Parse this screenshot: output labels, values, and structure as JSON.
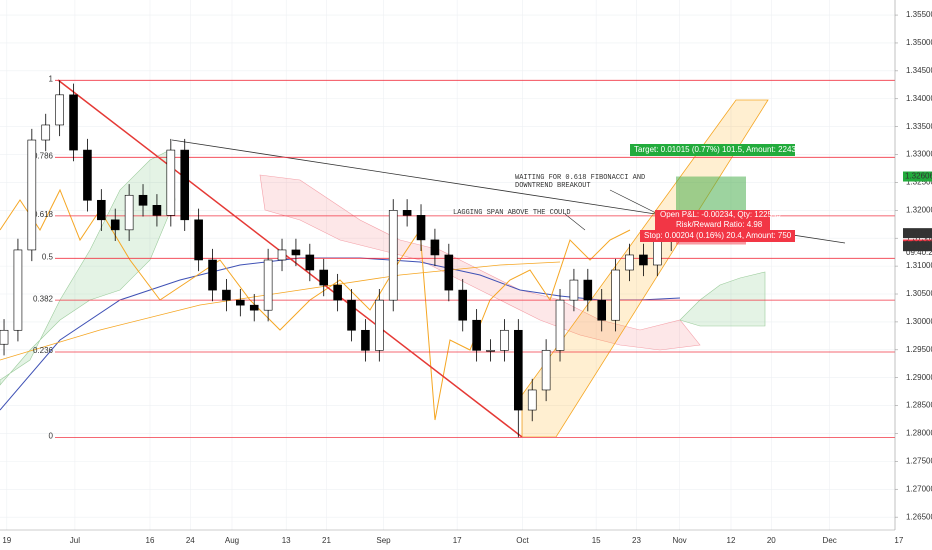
{
  "chart_data": {
    "type": "candlestick",
    "categories": [
      null,
      null,
      null,
      null,
      null,
      null,
      null,
      null,
      null,
      null,
      null,
      null,
      null,
      null,
      null,
      null,
      null,
      null,
      null,
      null,
      null,
      null,
      null,
      null,
      null,
      null,
      null,
      null,
      null,
      null,
      null,
      null,
      null,
      null,
      null,
      null,
      null,
      null,
      null,
      null,
      null,
      null,
      null,
      null,
      null,
      null,
      null,
      null,
      null
    ],
    "open": [
      1.296,
      1.2985,
      1.3129,
      1.3326,
      1.3353,
      1.3407,
      1.3308,
      1.3218,
      1.3183,
      1.3165,
      1.3227,
      1.3209,
      1.3191,
      1.3308,
      1.3183,
      1.3111,
      1.3057,
      1.3039,
      1.303,
      1.3021,
      1.3111,
      1.3129,
      1.312,
      1.3093,
      1.3066,
      1.3039,
      1.2985,
      1.2949,
      1.3039,
      1.32,
      1.3191,
      1.3147,
      1.312,
      1.3057,
      1.3003,
      1.2949,
      1.2949,
      1.2985,
      1.2842,
      1.2878,
      1.2949,
      1.3039,
      1.3075,
      1.3039,
      1.3003,
      1.3093,
      1.312,
      1.3102,
      1.3147
    ],
    "high": [
      1.3005,
      1.3149,
      1.3346,
      1.3373,
      1.3433,
      1.3427,
      1.3328,
      1.3238,
      1.3203,
      1.3247,
      1.3247,
      1.3229,
      1.3328,
      1.3328,
      1.3203,
      1.3131,
      1.3077,
      1.3059,
      1.305,
      1.3131,
      1.3149,
      1.3149,
      1.314,
      1.3113,
      1.3086,
      1.3059,
      1.3005,
      1.3059,
      1.322,
      1.322,
      1.3211,
      1.3167,
      1.314,
      1.3077,
      1.3023,
      1.2969,
      1.3005,
      1.3005,
      1.2898,
      1.2969,
      1.3059,
      1.3095,
      1.3095,
      1.3059,
      1.3113,
      1.314,
      1.314,
      1.3167,
      1.3194
    ],
    "low": [
      1.294,
      1.2965,
      1.3109,
      1.3306,
      1.3333,
      1.3288,
      1.3198,
      1.3163,
      1.3145,
      1.3145,
      1.3189,
      1.3171,
      1.3171,
      1.3163,
      1.3091,
      1.3037,
      1.3019,
      1.301,
      1.3001,
      1.3001,
      1.3091,
      1.31,
      1.3073,
      1.3046,
      1.3019,
      1.2965,
      1.2929,
      1.2929,
      1.3019,
      1.3171,
      1.3127,
      1.31,
      1.3037,
      1.2983,
      1.2929,
      1.2929,
      1.2929,
      1.2793,
      1.2822,
      1.2858,
      1.2929,
      1.3019,
      1.3019,
      1.2983,
      1.2983,
      1.3073,
      1.3082,
      1.3082,
      1.3127
    ],
    "close": [
      1.2985,
      1.3129,
      1.3326,
      1.3353,
      1.3407,
      1.3308,
      1.3218,
      1.3183,
      1.3165,
      1.3227,
      1.3209,
      1.3191,
      1.3308,
      1.3183,
      1.3111,
      1.3057,
      1.3039,
      1.303,
      1.3021,
      1.3111,
      1.3129,
      1.312,
      1.3093,
      1.3066,
      1.3039,
      1.2985,
      1.2949,
      1.3039,
      1.32,
      1.3191,
      1.3147,
      1.312,
      1.3057,
      1.3003,
      1.2949,
      1.2949,
      1.2985,
      1.2842,
      1.2878,
      1.2949,
      1.3039,
      1.3075,
      1.3039,
      1.3003,
      1.3093,
      1.312,
      1.3102,
      1.3147,
      1.3174
    ],
    "up_color": "#ffffff",
    "down_color": "#000000",
    "xlim": [
      -0.29,
      64.1
    ],
    "ylim": [
      1.2627,
      1.3577
    ],
    "xticks": [
      {
        "value": 0.2,
        "label": "19"
      },
      {
        "value": 5.1,
        "label": "Jul"
      },
      {
        "value": 10.5,
        "label": "16"
      },
      {
        "value": 13.4,
        "label": "24"
      },
      {
        "value": 16.4,
        "label": "Aug"
      },
      {
        "value": 20.3,
        "label": "13"
      },
      {
        "value": 23.2,
        "label": "21"
      },
      {
        "value": 27.3,
        "label": "Sep"
      },
      {
        "value": 32.6,
        "label": "17"
      },
      {
        "value": 37.3,
        "label": "Oct"
      },
      {
        "value": 42.6,
        "label": "15"
      },
      {
        "value": 45.5,
        "label": "23"
      },
      {
        "value": 48.6,
        "label": "Nov"
      },
      {
        "value": 52.3,
        "label": "12"
      },
      {
        "value": 55.2,
        "label": "20"
      },
      {
        "value": 59.4,
        "label": "Dec"
      },
      {
        "value": 64.7,
        "label": "17"
      }
    ],
    "yticks": [
      {
        "value": 1.265,
        "label": "1.26500"
      },
      {
        "value": 1.27,
        "label": "1.27000"
      },
      {
        "value": 1.275,
        "label": "1.27500"
      },
      {
        "value": 1.28,
        "label": "1.28000"
      },
      {
        "value": 1.285,
        "label": "1.28500"
      },
      {
        "value": 1.29,
        "label": "1.29000"
      },
      {
        "value": 1.295,
        "label": "1.29500"
      },
      {
        "value": 1.3,
        "label": "1.30000"
      },
      {
        "value": 1.305,
        "label": "1.30500"
      },
      {
        "value": 1.31,
        "label": "1.31000"
      },
      {
        "value": 1.315,
        "label": "1.31500"
      },
      {
        "value": 1.32,
        "label": "1.32000"
      },
      {
        "value": 1.325,
        "label": "1.32500"
      },
      {
        "value": 1.33,
        "label": "1.33000"
      },
      {
        "value": 1.335,
        "label": "1.33500"
      },
      {
        "value": 1.34,
        "label": "1.34000"
      },
      {
        "value": 1.345,
        "label": "1.34500"
      },
      {
        "value": 1.35,
        "label": "1.35000"
      },
      {
        "value": 1.355,
        "label": "1.35500"
      }
    ],
    "grid": true,
    "fibonacci": {
      "color": "#f23645",
      "levels": [
        {
          "ratio": 1,
          "price": 1.3433
        },
        {
          "ratio": 0.786,
          "price": 1.3295
        },
        {
          "ratio": 0.618,
          "price": 1.319
        },
        {
          "ratio": 0.5,
          "price": 1.3114
        },
        {
          "ratio": 0.382,
          "price": 1.3039
        },
        {
          "ratio": 0.236,
          "price": 1.2946
        },
        {
          "ratio": 0,
          "price": 1.2793
        }
      ]
    },
    "price_tags": [
      {
        "value": 1.32606,
        "color": "#22ab3c"
      },
      {
        "value": 1.31591,
        "color": "#333333"
      },
      {
        "value": 1.31387,
        "color": "#f23645"
      },
      {
        "value": 1.31357,
        "color": "#333333"
      }
    ],
    "timer": "09:40:28",
    "position": {
      "target_text": "Target: 0.01015 (0.77%) 101.5, Amount: 2243.87",
      "pnl_text": "Open P&L: -0.00234, Qty: 122549",
      "ratio_text": "Risk/Reward Ratio: 4.98",
      "stop_text": "Stop: 0.00204 (0.16%) 20.4, Amount: 750"
    },
    "annotations": [
      "WAITING FOR 0.618 FIBONACCI AND",
      "DOWNTREND BREAKOUT",
      "LAGGING SPAN ABOVE THE COULD"
    ]
  }
}
